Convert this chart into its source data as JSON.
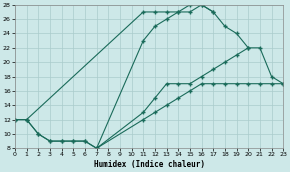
{
  "xlabel": "Humidex (Indice chaleur)",
  "xlim": [
    0,
    23
  ],
  "ylim": [
    8,
    28
  ],
  "xticks": [
    0,
    1,
    2,
    3,
    4,
    5,
    6,
    7,
    8,
    9,
    10,
    11,
    12,
    13,
    14,
    15,
    16,
    17,
    18,
    19,
    20,
    21,
    22,
    23
  ],
  "yticks": [
    8,
    10,
    12,
    14,
    16,
    18,
    20,
    22,
    24,
    26,
    28
  ],
  "background_color": "#cde8e8",
  "grid_color": "#aacccc",
  "line_color": "#1a6b5a",
  "line1": {
    "x": [
      0,
      1,
      2,
      3,
      4,
      5,
      6,
      7
    ],
    "y": [
      12,
      12,
      10,
      9,
      9,
      9,
      9,
      8
    ]
  },
  "line_lower_right": {
    "x": [
      7,
      11,
      12,
      13,
      14,
      15,
      16,
      17,
      18,
      19,
      20,
      21,
      22,
      23
    ],
    "y": [
      8,
      12,
      13,
      14,
      15,
      16,
      17,
      17,
      17,
      17,
      17,
      17,
      17,
      17
    ]
  },
  "line_mid_right": {
    "x": [
      7,
      11,
      12,
      13,
      14,
      15,
      16,
      17,
      18,
      19,
      20,
      21,
      22,
      23
    ],
    "y": [
      8,
      13,
      15,
      17,
      17,
      17,
      18,
      19,
      20,
      21,
      22,
      22,
      18,
      17
    ]
  },
  "line_upper_curve": {
    "x": [
      0,
      1,
      2,
      3,
      4,
      5,
      6,
      7,
      11,
      12,
      13,
      14,
      15,
      16,
      17,
      18,
      19,
      20
    ],
    "y": [
      12,
      12,
      10,
      9,
      9,
      9,
      9,
      8,
      23,
      25,
      26,
      27,
      27,
      28,
      27,
      25,
      24,
      22
    ]
  },
  "line_top": {
    "x": [
      0,
      1,
      11,
      12,
      13,
      14,
      15,
      16,
      17
    ],
    "y": [
      12,
      12,
      27,
      27,
      27,
      27,
      28,
      28,
      27
    ]
  }
}
